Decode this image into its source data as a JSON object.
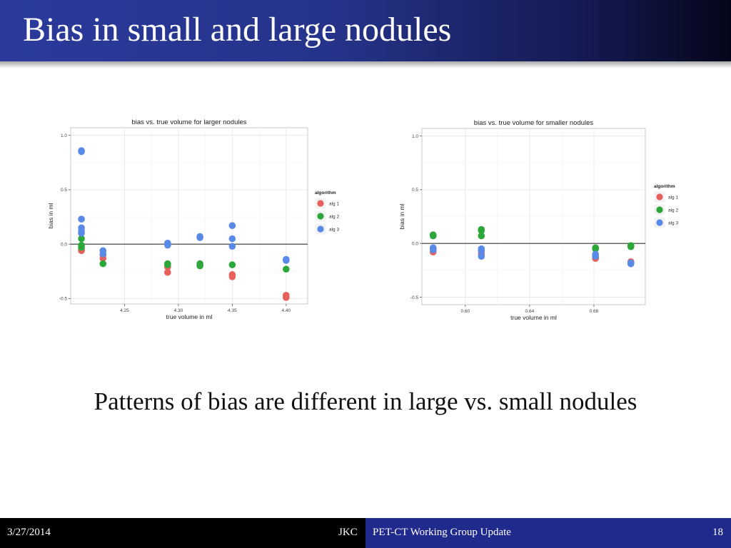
{
  "slide": {
    "title": "Bias in small and large nodules",
    "caption": "Patterns of bias are different in large vs. small nodules"
  },
  "footer": {
    "date": "3/27/2014",
    "author": "JKC",
    "event": "PET-CT Working Group Update",
    "page": "18"
  },
  "colors": {
    "alg 1": "#e8605c",
    "alg 2": "#2ca83a",
    "alg 3": "#5a8ae8"
  },
  "chart_data": [
    {
      "type": "scatter",
      "title": "bias vs. true volume for larger nodules",
      "xlabel": "true volume in ml",
      "ylabel": "bias in ml",
      "xlim": [
        4.2,
        4.42
      ],
      "ylim": [
        -0.55,
        1.07
      ],
      "xticks": [
        4.25,
        4.3,
        4.35,
        4.4
      ],
      "xtick_labels": [
        "4.25",
        "4.30",
        "4.35",
        "4.40"
      ],
      "yticks": [
        -0.5,
        0.0,
        0.5,
        1.0
      ],
      "ytick_labels": [
        "-0.5",
        "0.0",
        "0.5",
        "1.0"
      ],
      "hline": 0,
      "grid": true,
      "legend": {
        "title": "algorithm",
        "placement": "right",
        "entries": [
          "alg 1",
          "alg 2",
          "alg 3"
        ]
      },
      "series": [
        {
          "name": "alg 1",
          "points": [
            [
              4.21,
              -0.05
            ],
            [
              4.21,
              -0.06
            ],
            [
              4.23,
              -0.13
            ],
            [
              4.23,
              -0.1
            ],
            [
              4.29,
              -0.21
            ],
            [
              4.29,
              -0.26
            ],
            [
              4.32,
              -0.19
            ],
            [
              4.35,
              -0.28
            ],
            [
              4.35,
              -0.3
            ],
            [
              4.4,
              -0.47
            ],
            [
              4.4,
              -0.49
            ]
          ]
        },
        {
          "name": "alg 2",
          "points": [
            [
              4.21,
              0.05
            ],
            [
              4.21,
              -0.01
            ],
            [
              4.21,
              -0.03
            ],
            [
              4.23,
              -0.18
            ],
            [
              4.29,
              -0.18
            ],
            [
              4.29,
              -0.19
            ],
            [
              4.32,
              -0.18
            ],
            [
              4.32,
              -0.2
            ],
            [
              4.35,
              -0.19
            ],
            [
              4.4,
              -0.23
            ]
          ]
        },
        {
          "name": "alg 3",
          "points": [
            [
              4.21,
              0.86
            ],
            [
              4.21,
              0.85
            ],
            [
              4.21,
              0.23
            ],
            [
              4.21,
              0.15
            ],
            [
              4.21,
              0.12
            ],
            [
              4.21,
              0.1
            ],
            [
              4.23,
              -0.06
            ],
            [
              4.23,
              -0.09
            ],
            [
              4.29,
              0.01
            ],
            [
              4.29,
              -0.01
            ],
            [
              4.32,
              0.07
            ],
            [
              4.32,
              0.06
            ],
            [
              4.35,
              0.17
            ],
            [
              4.35,
              0.05
            ],
            [
              4.35,
              -0.02
            ],
            [
              4.4,
              -0.14
            ],
            [
              4.4,
              -0.15
            ]
          ]
        }
      ]
    },
    {
      "type": "scatter",
      "title": "bias vs. true volume for smaller nodules",
      "xlabel": "true volume in ml",
      "ylabel": "bias in ml",
      "xlim": [
        0.573,
        0.712
      ],
      "ylim": [
        -0.57,
        1.07
      ],
      "xticks": [
        0.6,
        0.64,
        0.68
      ],
      "xtick_labels": [
        "0.60",
        "0.64",
        "0.68"
      ],
      "yticks": [
        -0.5,
        0.0,
        0.5,
        1.0
      ],
      "ytick_labels": [
        "-0.5",
        "0.0",
        "0.5",
        "1.0"
      ],
      "hline": 0,
      "grid": true,
      "legend": {
        "title": "algorithm",
        "placement": "right",
        "entries": [
          "alg 1",
          "alg 2",
          "alg 3"
        ]
      },
      "series": [
        {
          "name": "alg 1",
          "points": [
            [
              0.58,
              -0.08
            ],
            [
              0.58,
              -0.05
            ],
            [
              0.61,
              -0.07
            ],
            [
              0.61,
              -0.1
            ],
            [
              0.681,
              -0.13
            ],
            [
              0.681,
              -0.14
            ],
            [
              0.703,
              -0.17
            ]
          ]
        },
        {
          "name": "alg 2",
          "points": [
            [
              0.58,
              0.08
            ],
            [
              0.58,
              0.07
            ],
            [
              0.61,
              0.13
            ],
            [
              0.61,
              0.12
            ],
            [
              0.61,
              0.07
            ],
            [
              0.681,
              -0.04
            ],
            [
              0.681,
              -0.05
            ],
            [
              0.703,
              -0.02
            ],
            [
              0.703,
              -0.03
            ]
          ]
        },
        {
          "name": "alg 3",
          "points": [
            [
              0.58,
              -0.04
            ],
            [
              0.58,
              -0.06
            ],
            [
              0.61,
              -0.05
            ],
            [
              0.61,
              -0.07
            ],
            [
              0.61,
              -0.12
            ],
            [
              0.681,
              -0.1
            ],
            [
              0.681,
              -0.12
            ],
            [
              0.703,
              -0.18
            ],
            [
              0.703,
              -0.19
            ]
          ]
        }
      ]
    }
  ]
}
